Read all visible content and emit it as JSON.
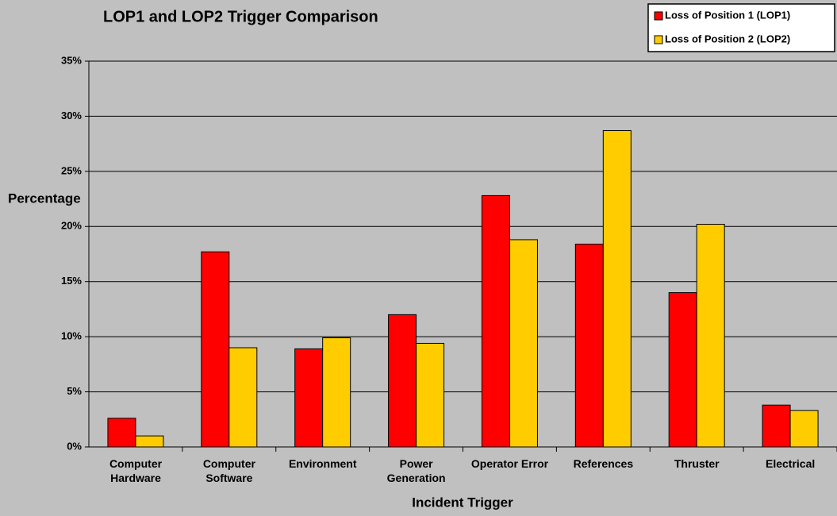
{
  "chart_data": {
    "type": "bar",
    "title": "LOP1 and LOP2 Trigger Comparison",
    "x_label": "Incident Trigger",
    "y_label": "Percentage",
    "categories": [
      "Computer\nHardware",
      "Computer\nSoftware",
      "Environment",
      "Power\nGeneration",
      "Operator Error",
      "References",
      "Thruster",
      "Electrical"
    ],
    "series": [
      {
        "name": "Loss of Position 1 (LOP1)",
        "color": "#ff0000",
        "values": [
          2.6,
          17.7,
          8.9,
          12.0,
          22.8,
          18.4,
          14.0,
          3.8
        ]
      },
      {
        "name": "Loss of Position 2 (LOP2)",
        "color": "#ffcc00",
        "values": [
          1.0,
          9.0,
          9.9,
          9.4,
          18.8,
          28.7,
          20.2,
          3.3
        ]
      }
    ],
    "ylim": [
      0,
      35
    ],
    "yticks": [
      {
        "value": 0,
        "label": "0%"
      },
      {
        "value": 5,
        "label": "5%"
      },
      {
        "value": 10,
        "label": "10%"
      },
      {
        "value": 15,
        "label": "15%"
      },
      {
        "value": 20,
        "label": "20%"
      },
      {
        "value": 25,
        "label": "25%"
      },
      {
        "value": 30,
        "label": "30%"
      },
      {
        "value": 35,
        "label": "35%"
      }
    ],
    "grid": true,
    "legend": "top-right"
  }
}
